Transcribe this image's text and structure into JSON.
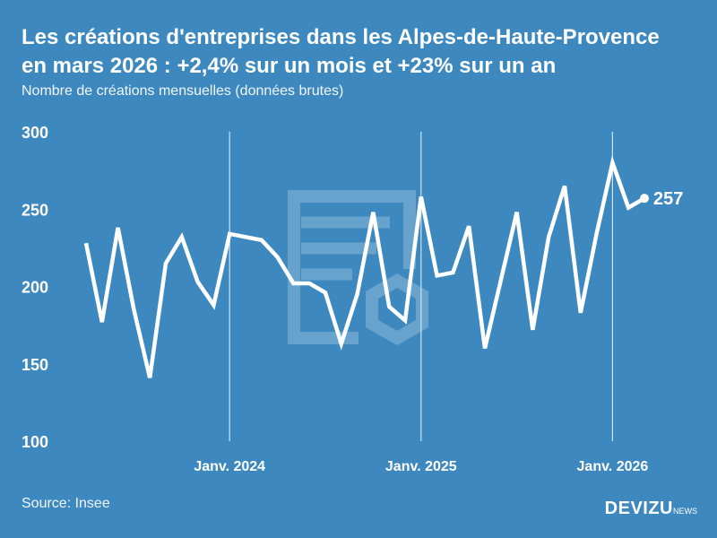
{
  "title_line1": "Les créations d'entreprises dans les Alpes-de-Haute-Provence",
  "title_line2": "en mars 2026 : +2,4% sur un mois et +23% sur un an",
  "subtitle": "Nombre de créations mensuelles (données brutes)",
  "source": "Source: Insee",
  "logo": {
    "main": "DEVIZU",
    "sub": "NEWS"
  },
  "colors": {
    "background": "#3d89bf",
    "line": "#ffffff"
  },
  "chart_data": {
    "type": "line",
    "ylim": [
      100,
      300
    ],
    "yticks": [
      100,
      150,
      200,
      250,
      300
    ],
    "xtick_labels": [
      "Janv. 2024",
      "Janv. 2025",
      "Janv. 2026"
    ],
    "grid": "vertical lines at January",
    "last_label": "257",
    "x": [
      "2023-04",
      "2023-05",
      "2023-06",
      "2023-07",
      "2023-08",
      "2023-09",
      "2023-10",
      "2023-11",
      "2023-12",
      "2024-01",
      "2024-02",
      "2024-03",
      "2024-04",
      "2024-05",
      "2024-06",
      "2024-07",
      "2024-08",
      "2024-09",
      "2024-10",
      "2024-11",
      "2024-12",
      "2025-01",
      "2025-02",
      "2025-03",
      "2025-04",
      "2025-05",
      "2025-06",
      "2025-07",
      "2025-08",
      "2025-09",
      "2025-10",
      "2025-11",
      "2025-12",
      "2026-01",
      "2026-02",
      "2026-03"
    ],
    "values": [
      228,
      177,
      238,
      185,
      141,
      215,
      232,
      203,
      188,
      234,
      232,
      230,
      219,
      202,
      202,
      196,
      163,
      195,
      248,
      187,
      178,
      258,
      207,
      209,
      239,
      160,
      204,
      248,
      172,
      232,
      265,
      183,
      234,
      280,
      251,
      257
    ]
  }
}
